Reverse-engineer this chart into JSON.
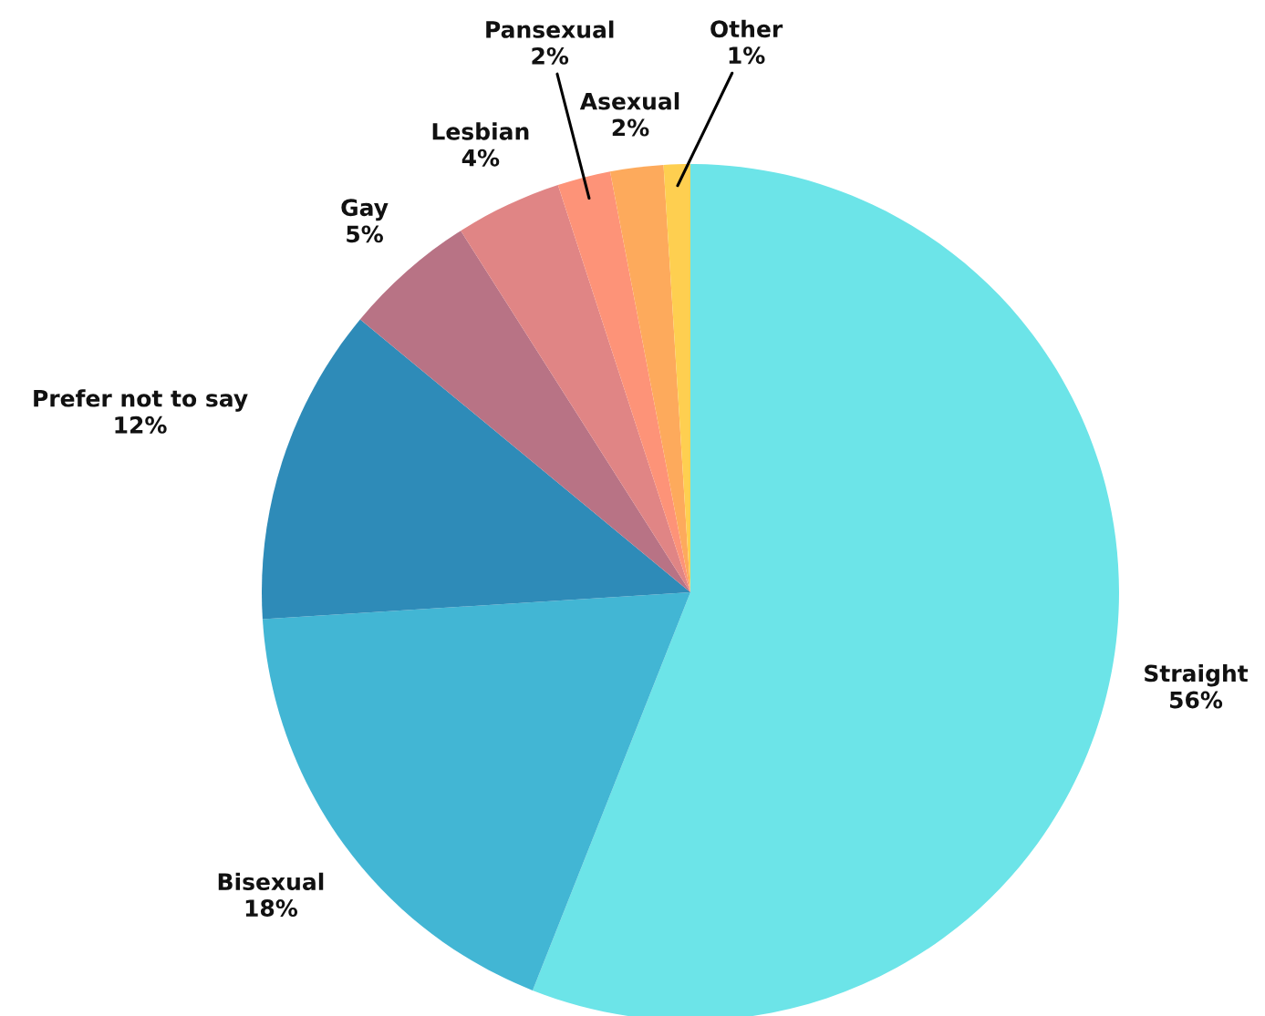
{
  "chart_data": {
    "type": "pie",
    "categories": [
      "Straight",
      "Bisexual",
      "Prefer not to say",
      "Gay",
      "Lesbian",
      "Pansexual",
      "Asexual",
      "Other"
    ],
    "values": [
      56,
      18,
      12,
      5,
      4,
      2,
      2,
      1
    ],
    "value_labels": [
      "56%",
      "18%",
      "12%",
      "5%",
      "4%",
      "2%",
      "2%",
      "1%"
    ],
    "colors": [
      "#6ce4e8",
      "#42b6d4",
      "#2e8bb8",
      "#b87385",
      "#e08585",
      "#fd9378",
      "#fdaa5c",
      "#fecf50"
    ],
    "legend": false
  }
}
